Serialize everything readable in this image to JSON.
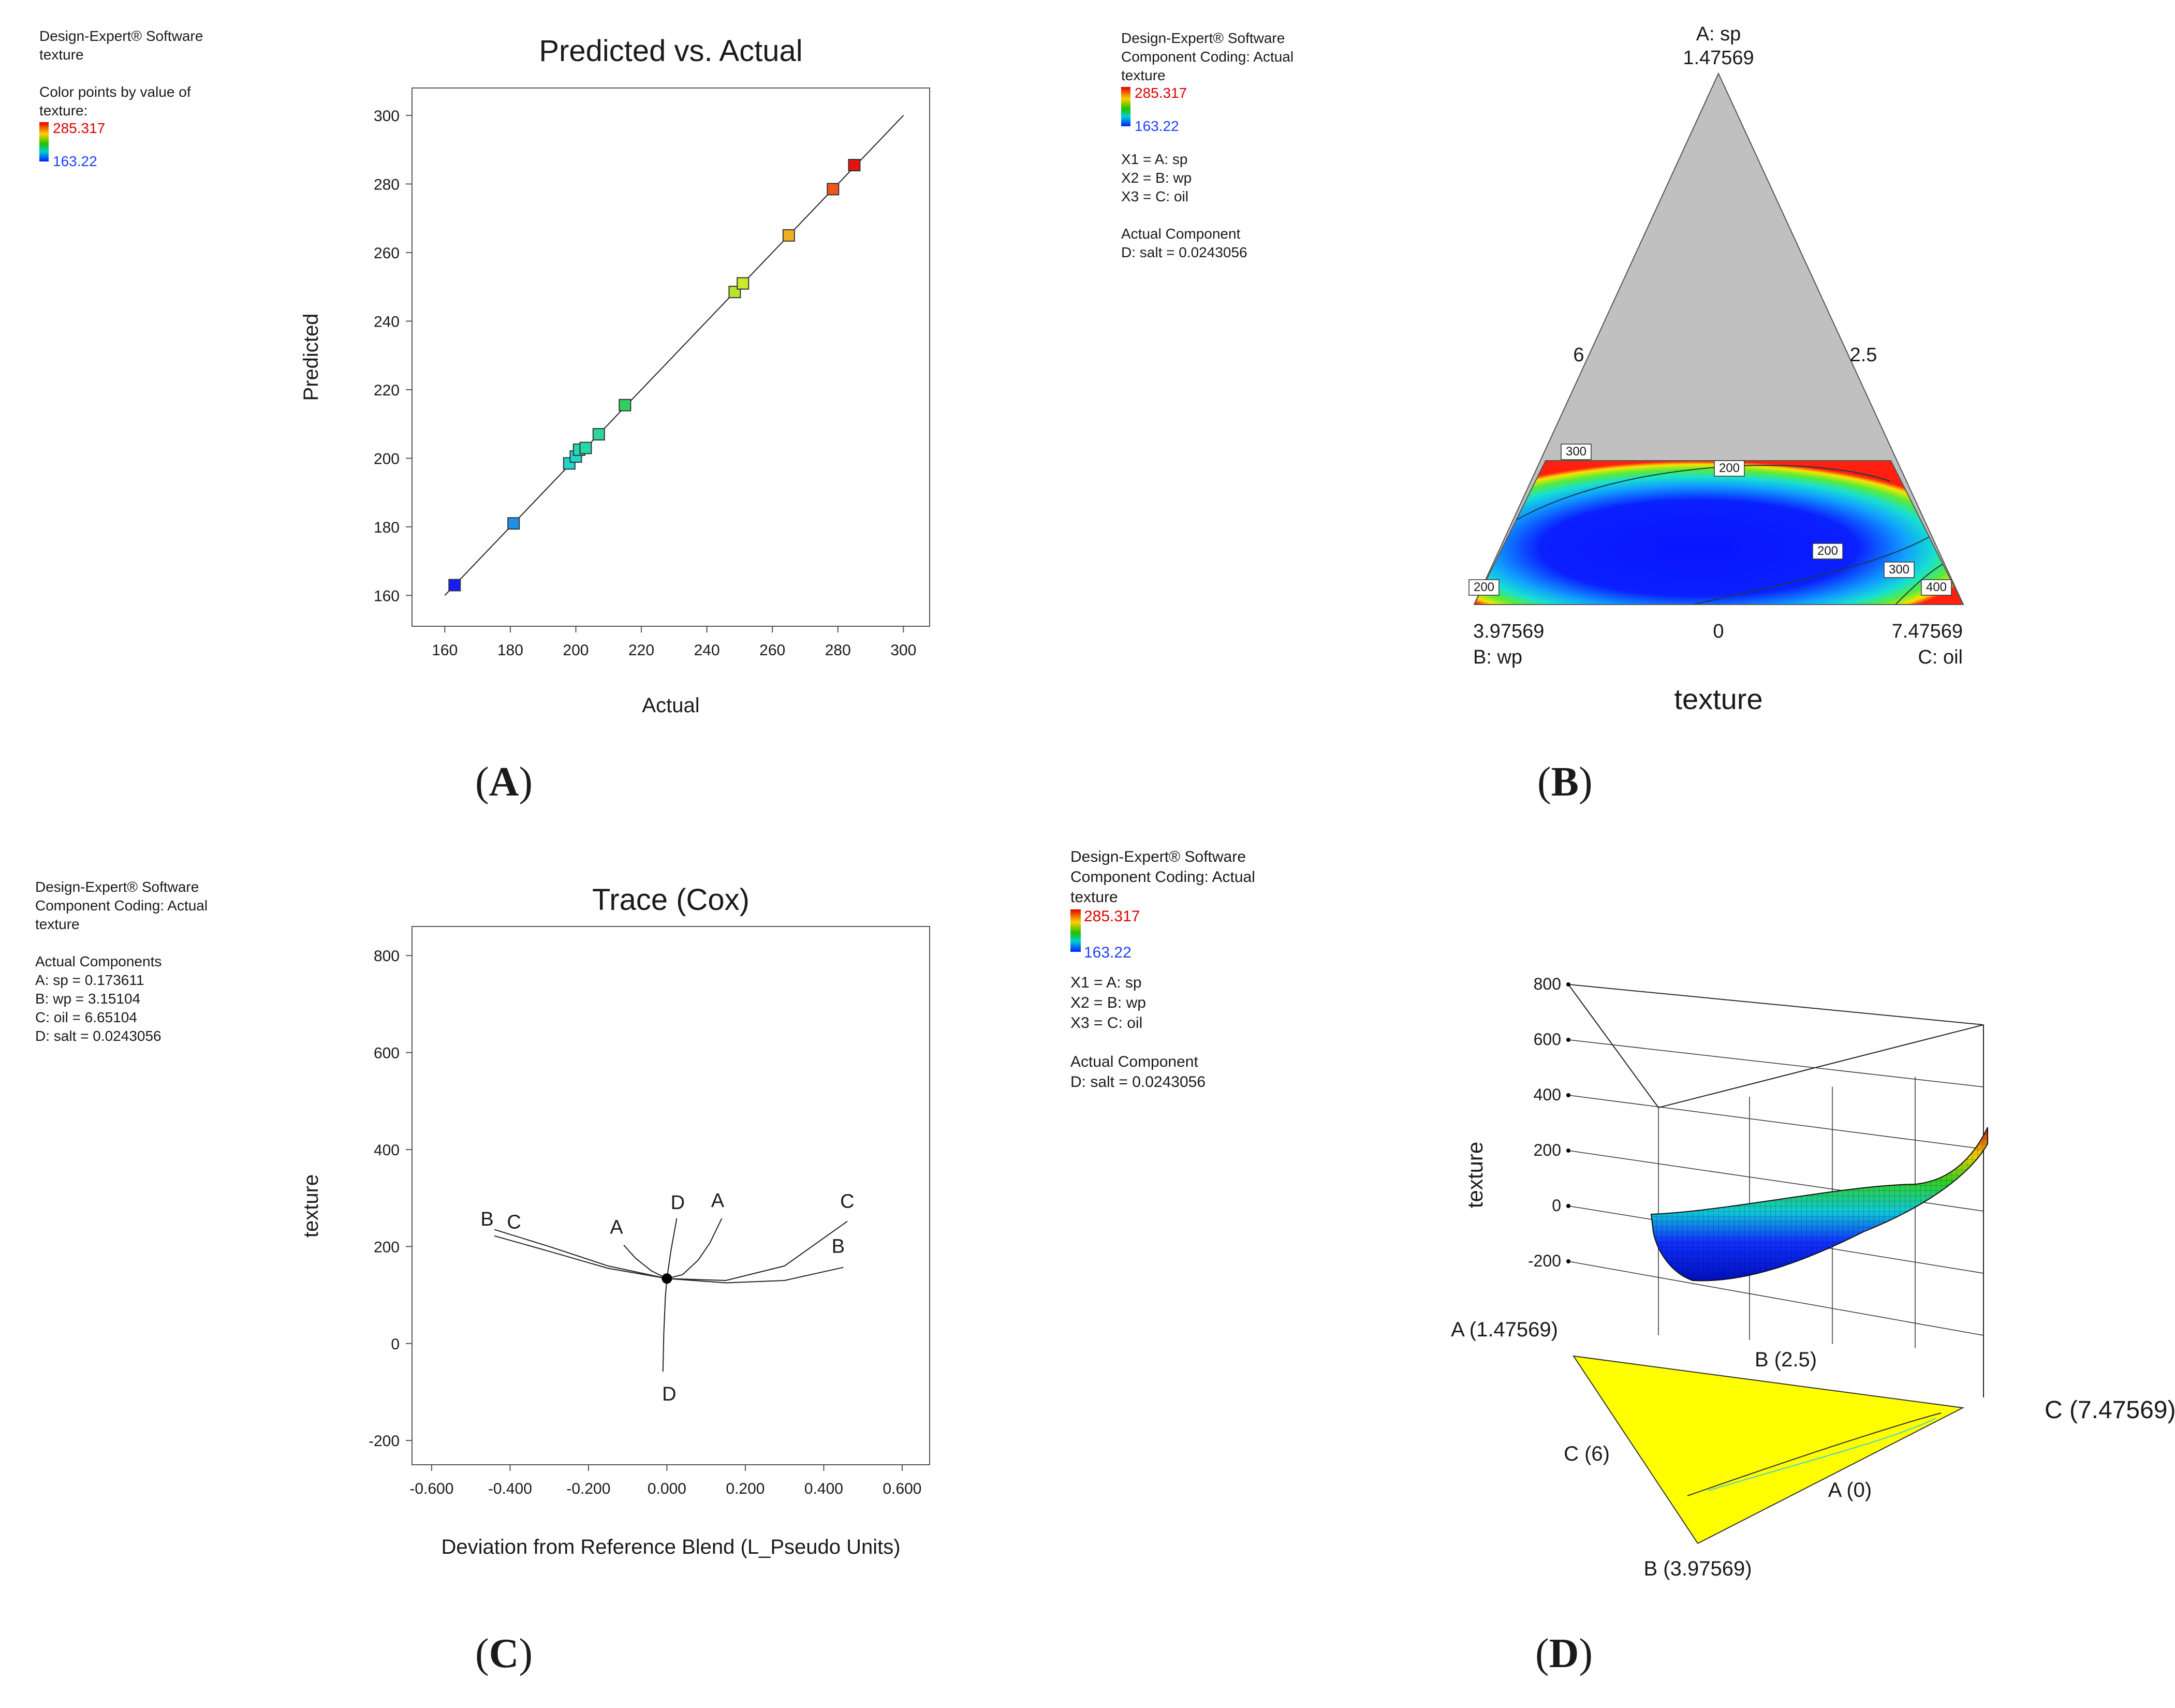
{
  "panelA": {
    "label_open": "(",
    "label_letter": "A",
    "label_close": ")",
    "legend": {
      "software": "Design-Expert® Software",
      "response": "texture",
      "color_line1": "Color points by value of",
      "color_line2": "texture:",
      "color_max": "285.317",
      "color_min": "163.22"
    }
  },
  "panelB": {
    "label_open": "(",
    "label_letter": "B",
    "label_close": ")",
    "legend": {
      "software": "Design-Expert® Software",
      "coding": "Component Coding: Actual",
      "response": "texture",
      "color_max": "285.317",
      "color_min": "163.22",
      "x1": "X1 = A: sp",
      "x2": "X2 = B: wp",
      "x3": "X3 = C: oil",
      "actual_title": "Actual Component",
      "actual_d": "D: salt = 0.0243056"
    }
  },
  "panelC": {
    "label_open": "(",
    "label_letter": "C",
    "label_close": ")",
    "legend": {
      "software": "Design-Expert® Software",
      "coding": "Component Coding: Actual",
      "response": "texture",
      "actual_title": "Actual Components",
      "a": "A: sp = 0.173611",
      "b": "B: wp = 3.15104",
      "c": "C: oil = 6.65104",
      "d": "D: salt = 0.0243056"
    }
  },
  "panelD": {
    "label_open": "(",
    "label_letter": "D",
    "label_close": ")",
    "legend": {
      "software": "Design-Expert® Software",
      "coding": "Component Coding: Actual",
      "response": "texture",
      "color_max": "285.317",
      "color_min": "163.22",
      "x1": "X1 = A: sp",
      "x2": "X2 = B: wp",
      "x3": "X3 = C: oil",
      "actual_title": "Actual Component",
      "actual_d": "D: salt = 0.0243056"
    }
  },
  "chart_data": [
    {
      "id": "A",
      "type": "scatter",
      "title": "Predicted vs. Actual",
      "xlabel": "Actual",
      "ylabel": "Predicted",
      "xlim": [
        150,
        308
      ],
      "ylim": [
        151,
        308
      ],
      "xticks": [
        160,
        180,
        200,
        220,
        240,
        260,
        280,
        300
      ],
      "yticks": [
        160,
        180,
        200,
        220,
        240,
        260,
        280,
        300
      ],
      "reference_line": [
        [
          160,
          160
        ],
        [
          300,
          300
        ]
      ],
      "points": [
        {
          "x": 163,
          "y": 163,
          "color": "#1a1aff"
        },
        {
          "x": 181,
          "y": 181,
          "color": "#1e90e8"
        },
        {
          "x": 198,
          "y": 198.5,
          "color": "#21d6c9"
        },
        {
          "x": 200,
          "y": 200.5,
          "color": "#21d6c9"
        },
        {
          "x": 201,
          "y": 202.5,
          "color": "#24d8b8"
        },
        {
          "x": 203,
          "y": 203,
          "color": "#26d8a8"
        },
        {
          "x": 207,
          "y": 207,
          "color": "#2bd69a"
        },
        {
          "x": 215,
          "y": 215.5,
          "color": "#30d060"
        },
        {
          "x": 248.5,
          "y": 248.5,
          "color": "#b4e62a"
        },
        {
          "x": 251,
          "y": 251,
          "color": "#c8ea2a"
        },
        {
          "x": 265,
          "y": 265,
          "color": "#f0b020"
        },
        {
          "x": 278.5,
          "y": 278.5,
          "color": "#f05818"
        },
        {
          "x": 285,
          "y": 285.5,
          "color": "#e81010"
        }
      ]
    },
    {
      "id": "B",
      "type": "heatmap",
      "title": "texture",
      "vertex_top_name": "A: sp",
      "vertex_top_value": "1.47569",
      "vertex_left_value": "3.97569",
      "vertex_left_name": "B: wp",
      "vertex_right_value": "7.47569",
      "vertex_right_name": "C: oil",
      "left_side_tick": "6",
      "right_side_tick": "2.5",
      "base_tick": "0",
      "contour_labels": [
        "300",
        "200",
        "200",
        "300",
        "400",
        "200"
      ]
    },
    {
      "id": "C",
      "type": "line",
      "title": "Trace (Cox)",
      "xlabel": "Deviation from Reference Blend (L_Pseudo Units)",
      "ylabel": "texture",
      "xlim": [
        -0.65,
        0.67
      ],
      "ylim": [
        -250,
        860
      ],
      "xticks": [
        "-0.600",
        "-0.400",
        "-0.200",
        "0.000",
        "0.200",
        "0.400",
        "0.600"
      ],
      "xtick_values": [
        -0.6,
        -0.4,
        -0.2,
        0,
        0.2,
        0.4,
        0.6
      ],
      "yticks": [
        -200,
        0,
        200,
        400,
        600,
        800
      ],
      "reference_point": {
        "x": 0,
        "y": 134
      },
      "series": [
        {
          "name": "A",
          "x": [
            -0.11,
            -0.08,
            -0.04,
            0,
            0.04,
            0.08,
            0.11,
            0.14
          ],
          "y": [
            203,
            176,
            150,
            134,
            142,
            172,
            208,
            258
          ]
        },
        {
          "name": "B",
          "x": [
            -0.44,
            -0.3,
            -0.15,
            0,
            0.15,
            0.3,
            0.45
          ],
          "y": [
            222,
            190,
            155,
            134,
            125,
            130,
            157
          ]
        },
        {
          "name": "C",
          "x": [
            -0.44,
            -0.3,
            -0.15,
            0,
            0.15,
            0.3,
            0.46
          ],
          "y": [
            235,
            200,
            160,
            134,
            130,
            160,
            252
          ]
        },
        {
          "name": "D",
          "x": [
            -0.01,
            -0.008,
            -0.004,
            0,
            0.01,
            0.02,
            0.025
          ],
          "y": [
            -58,
            20,
            95,
            134,
            190,
            235,
            258
          ]
        }
      ]
    },
    {
      "id": "D",
      "type": "surface",
      "zlabel": "texture",
      "zticks": [
        -200,
        0,
        200,
        400,
        600,
        800
      ],
      "axis_labels": [
        "A (1.47569)",
        "B (2.5)",
        "C (7.47569)",
        "C (6)",
        "A (0)",
        "B (3.97569)"
      ]
    }
  ]
}
